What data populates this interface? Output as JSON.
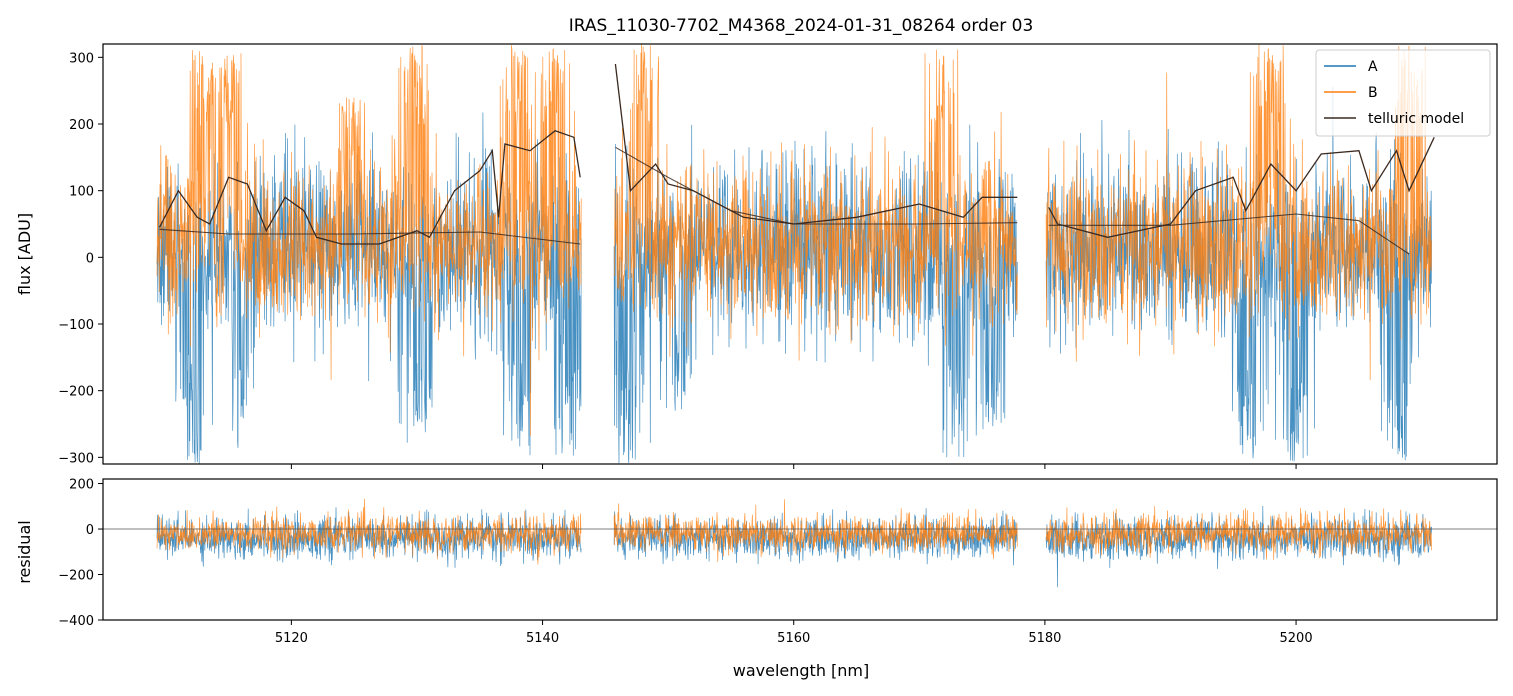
{
  "title": "IRAS_11030-7702_M4368_2024-01-31_08264  order 03",
  "chart_data": [
    {
      "panel": "top",
      "type": "line",
      "ylabel": "flux [ADU]",
      "xlim": [
        5105,
        5216
      ],
      "ylim": [
        -310,
        320
      ],
      "yticks": [
        -300,
        -200,
        -100,
        0,
        100,
        200,
        300
      ],
      "xticks": [
        5120,
        5140,
        5160,
        5180,
        5200
      ],
      "legend": {
        "placement": "top-right",
        "entries": [
          "A",
          "B",
          "telluric model"
        ]
      },
      "segments": [
        [
          5109.3,
          5143.1
        ],
        [
          5145.7,
          5177.8
        ],
        [
          5180.1,
          5210.8
        ]
      ],
      "series": [
        {
          "name": "A",
          "color": "#1f77b4",
          "baseline": 10,
          "noise_sigma": 65,
          "dips": [
            {
              "x": 5112,
              "min": -310
            },
            {
              "x": 5116,
              "min": -300
            },
            {
              "x": 5130,
              "min": -290
            },
            {
              "x": 5138,
              "min": -300
            },
            {
              "x": 5142,
              "min": -300
            },
            {
              "x": 5147,
              "min": -310
            },
            {
              "x": 5151,
              "min": -230
            },
            {
              "x": 5173,
              "min": -310
            },
            {
              "x": 5176,
              "min": -260
            },
            {
              "x": 5196,
              "min": -310
            },
            {
              "x": 5200,
              "min": -310
            },
            {
              "x": 5208,
              "min": -310
            }
          ]
        },
        {
          "name": "B",
          "color": "#ff7f0e",
          "baseline": 20,
          "noise_sigma": 60,
          "peaks": [
            {
              "x": 5113,
              "max": 320
            },
            {
              "x": 5115,
              "max": 320
            },
            {
              "x": 5125,
              "max": 240
            },
            {
              "x": 5130,
              "max": 320
            },
            {
              "x": 5138,
              "max": 320
            },
            {
              "x": 5141,
              "max": 320
            },
            {
              "x": 5148,
              "max": 320
            },
            {
              "x": 5172,
              "max": 320
            },
            {
              "x": 5198,
              "max": 320
            },
            {
              "x": 5209,
              "max": 320
            }
          ]
        },
        {
          "name": "telluric model",
          "color": "#3b2a20",
          "upper": [
            [
              5109.5,
              45
            ],
            [
              5111,
              100
            ],
            [
              5112.5,
              60
            ],
            [
              5113.5,
              50
            ],
            [
              5115,
              120
            ],
            [
              5116.5,
              110
            ],
            [
              5118,
              40
            ],
            [
              5119.5,
              90
            ],
            [
              5121,
              70
            ],
            [
              5122,
              30
            ],
            [
              5124,
              20
            ],
            [
              5127,
              20
            ],
            [
              5130,
              40
            ],
            [
              5131,
              30
            ],
            [
              5133,
              100
            ],
            [
              5135,
              130
            ],
            [
              5136,
              160
            ],
            [
              5136.5,
              60
            ],
            [
              5137,
              170
            ],
            [
              5139,
              160
            ],
            [
              5141,
              190
            ],
            [
              5142.5,
              180
            ],
            [
              5143,
              120
            ],
            [
              5145.8,
              290
            ],
            [
              5147,
              100
            ],
            [
              5149,
              140
            ],
            [
              5150,
              110
            ],
            [
              5152,
              100
            ],
            [
              5156,
              60
            ],
            [
              5160,
              50
            ],
            [
              5165,
              60
            ],
            [
              5170,
              80
            ],
            [
              5173.5,
              60
            ],
            [
              5175,
              90
            ],
            [
              5177.8,
              90
            ],
            [
              5180.3,
              75
            ],
            [
              5181,
              50
            ],
            [
              5185,
              30
            ],
            [
              5190,
              50
            ],
            [
              5192,
              100
            ],
            [
              5195,
              120
            ],
            [
              5196,
              70
            ],
            [
              5198,
              140
            ],
            [
              5200,
              100
            ],
            [
              5202,
              155
            ],
            [
              5205,
              160
            ],
            [
              5206,
              100
            ],
            [
              5208,
              160
            ],
            [
              5209,
              100
            ],
            [
              5211,
              180
            ]
          ],
          "lower": [
            [
              5109.5,
              42
            ],
            [
              5115,
              35
            ],
            [
              5125,
              35
            ],
            [
              5135,
              38
            ],
            [
              5143,
              20
            ],
            [
              5145.8,
              165
            ],
            [
              5150,
              120
            ],
            [
              5155,
              70
            ],
            [
              5160,
              50
            ],
            [
              5170,
              50
            ],
            [
              5177.8,
              52
            ],
            [
              5180.3,
              48
            ],
            [
              5190,
              48
            ],
            [
              5200,
              65
            ],
            [
              5205,
              55
            ],
            [
              5209,
              5
            ]
          ]
        }
      ]
    },
    {
      "panel": "bottom",
      "type": "line",
      "xlabel": "wavelength [nm]",
      "ylabel": "residual",
      "xlim": [
        5105,
        5216
      ],
      "ylim": [
        -400,
        220
      ],
      "yticks": [
        -400,
        -200,
        0,
        200
      ],
      "xticks": [
        5120,
        5140,
        5160,
        5180,
        5200
      ],
      "zero_line": true,
      "series": [
        {
          "name": "A",
          "color": "#1f77b4",
          "baseline": -40,
          "noise_sigma": 45
        },
        {
          "name": "B",
          "color": "#ff7f0e",
          "baseline": -20,
          "noise_sigma": 40
        }
      ]
    }
  ]
}
